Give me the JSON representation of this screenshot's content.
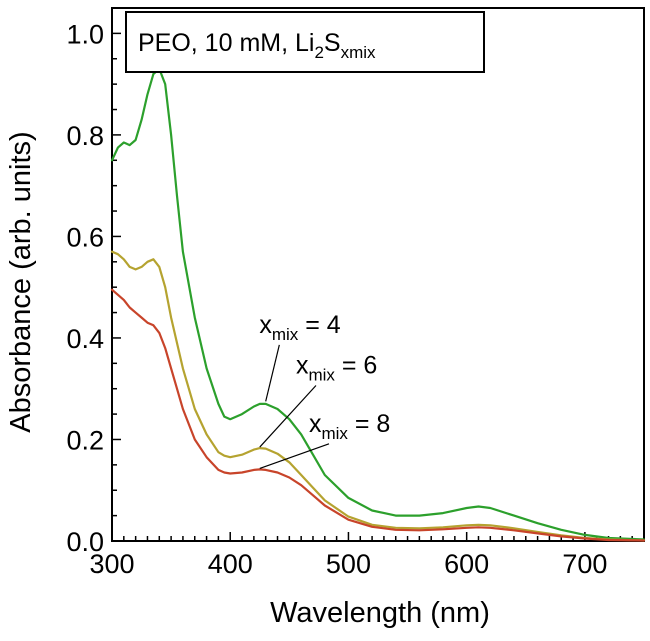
{
  "chart_data": {
    "type": "line",
    "xlabel": "Wavelength (nm)",
    "ylabel": "Absorbance (arb. units)",
    "xlim": [
      300,
      750
    ],
    "ylim": [
      0.0,
      1.05
    ],
    "x_ticks": [
      300,
      400,
      500,
      600,
      700
    ],
    "x_tick_labels": [
      "300",
      "400",
      "500",
      "600",
      "700"
    ],
    "y_ticks": [
      0.0,
      0.2,
      0.4,
      0.6,
      0.8,
      1.0
    ],
    "y_tick_labels": [
      "0.0",
      "0.2",
      "0.4",
      "0.6",
      "0.8",
      "1.0"
    ],
    "grid": false,
    "legend_box": {
      "main": "PEO, 10 mM, Li",
      "sub1": "2",
      "mid": "S",
      "sub2": "xmix"
    },
    "series": [
      {
        "name": "x_mix = 4",
        "color": "#2ca02c",
        "x": [
          300,
          305,
          310,
          315,
          320,
          325,
          330,
          335,
          340,
          345,
          350,
          355,
          360,
          370,
          380,
          390,
          395,
          400,
          410,
          420,
          425,
          430,
          440,
          450,
          460,
          470,
          480,
          500,
          520,
          540,
          560,
          580,
          600,
          610,
          620,
          640,
          660,
          680,
          700,
          720,
          750
        ],
        "y": [
          0.75,
          0.775,
          0.785,
          0.78,
          0.79,
          0.83,
          0.88,
          0.92,
          0.93,
          0.9,
          0.8,
          0.68,
          0.57,
          0.44,
          0.34,
          0.27,
          0.245,
          0.24,
          0.25,
          0.265,
          0.27,
          0.27,
          0.26,
          0.24,
          0.21,
          0.17,
          0.13,
          0.085,
          0.06,
          0.05,
          0.05,
          0.055,
          0.065,
          0.068,
          0.065,
          0.05,
          0.035,
          0.022,
          0.012,
          0.006,
          0.003
        ]
      },
      {
        "name": "x_mix = 6",
        "color": "#b5a330",
        "x": [
          300,
          305,
          310,
          315,
          320,
          325,
          330,
          335,
          340,
          345,
          350,
          360,
          370,
          380,
          390,
          395,
          400,
          410,
          420,
          425,
          430,
          440,
          450,
          460,
          470,
          480,
          500,
          520,
          540,
          560,
          580,
          600,
          610,
          620,
          640,
          660,
          680,
          700,
          720,
          750
        ],
        "y": [
          0.57,
          0.565,
          0.555,
          0.54,
          0.535,
          0.54,
          0.55,
          0.555,
          0.54,
          0.5,
          0.44,
          0.34,
          0.26,
          0.21,
          0.175,
          0.168,
          0.165,
          0.17,
          0.18,
          0.183,
          0.182,
          0.172,
          0.155,
          0.13,
          0.105,
          0.08,
          0.048,
          0.032,
          0.026,
          0.025,
          0.027,
          0.031,
          0.032,
          0.031,
          0.025,
          0.018,
          0.011,
          0.006,
          0.003,
          0.001
        ]
      },
      {
        "name": "x_mix = 8",
        "color": "#c8442a",
        "x": [
          300,
          305,
          310,
          315,
          320,
          325,
          330,
          335,
          340,
          345,
          350,
          360,
          370,
          380,
          390,
          395,
          400,
          410,
          420,
          425,
          430,
          440,
          450,
          460,
          470,
          480,
          500,
          520,
          540,
          560,
          580,
          600,
          610,
          620,
          640,
          660,
          680,
          700,
          720,
          750
        ],
        "y": [
          0.495,
          0.485,
          0.475,
          0.46,
          0.45,
          0.44,
          0.43,
          0.425,
          0.41,
          0.38,
          0.34,
          0.26,
          0.2,
          0.165,
          0.14,
          0.135,
          0.133,
          0.135,
          0.14,
          0.141,
          0.14,
          0.135,
          0.125,
          0.11,
          0.09,
          0.07,
          0.042,
          0.028,
          0.022,
          0.021,
          0.023,
          0.026,
          0.027,
          0.026,
          0.021,
          0.015,
          0.009,
          0.005,
          0.002,
          0.001
        ]
      }
    ],
    "annotations": [
      {
        "base": "x",
        "sub": "mix",
        "rest": " = 4",
        "x": 450,
        "y": 0.41,
        "arrow_to": [
          430,
          0.275
        ]
      },
      {
        "base": "x",
        "sub": "mix",
        "rest": " = 6",
        "x": 481,
        "y": 0.33,
        "arrow_to": [
          425,
          0.185
        ]
      },
      {
        "base": "x",
        "sub": "mix",
        "rest": " = 8",
        "x": 492,
        "y": 0.215,
        "arrow_to": [
          425,
          0.143
        ]
      }
    ]
  }
}
